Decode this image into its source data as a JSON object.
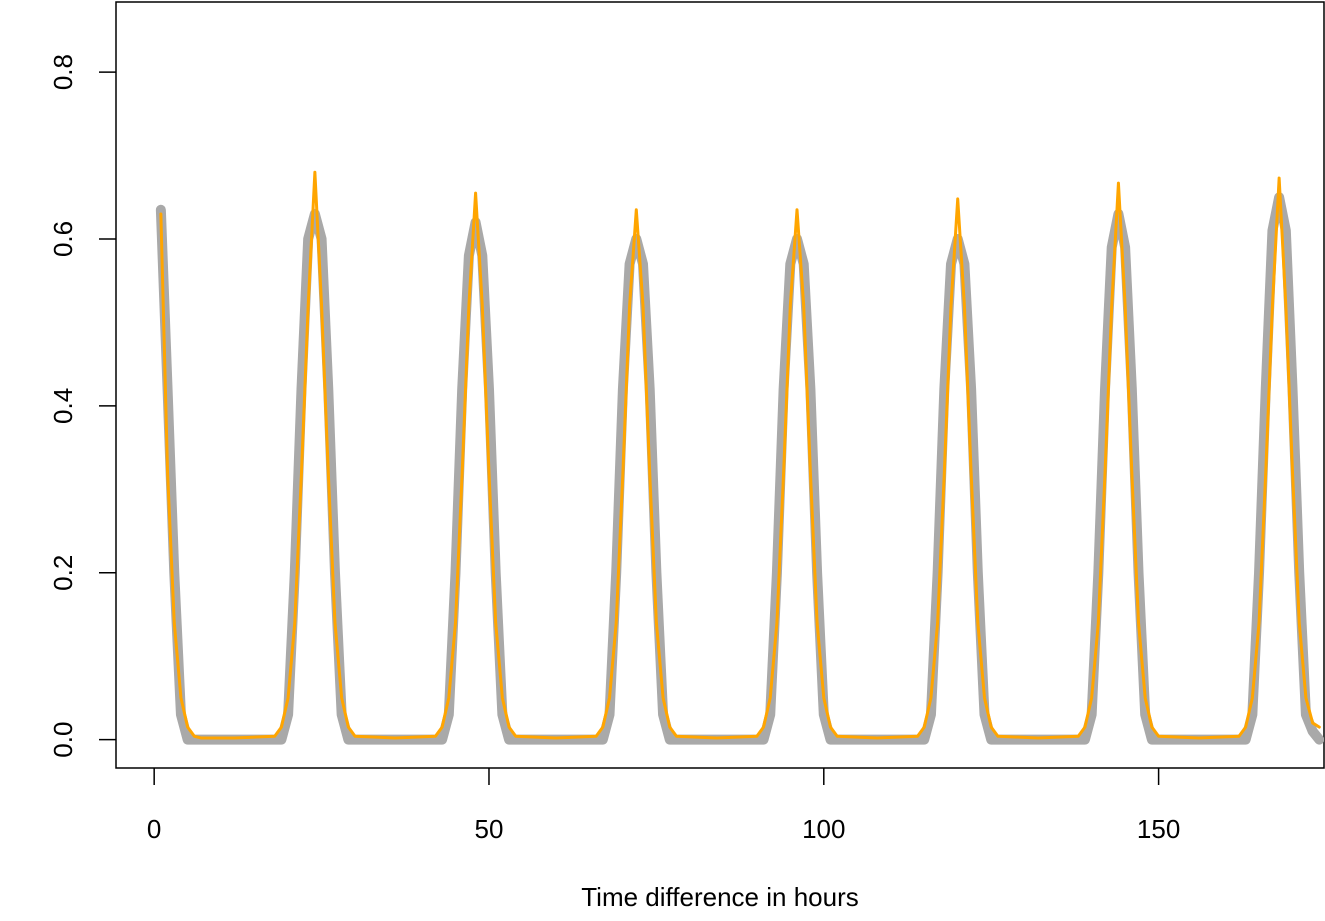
{
  "chart_data": {
    "type": "line",
    "x_label": "Time difference in hours",
    "x": [
      1,
      2,
      3,
      4,
      5,
      6,
      7,
      12,
      18,
      19,
      20,
      21,
      22,
      23,
      24,
      25,
      26,
      27,
      28,
      29,
      30,
      36,
      42,
      43,
      44,
      45,
      46,
      47,
      48,
      49,
      50,
      51,
      52,
      53,
      54,
      60,
      66,
      67,
      68,
      69,
      70,
      71,
      72,
      73,
      74,
      75,
      76,
      77,
      78,
      84,
      90,
      91,
      92,
      93,
      94,
      95,
      96,
      97,
      98,
      99,
      100,
      101,
      102,
      108,
      114,
      115,
      116,
      117,
      118,
      119,
      120,
      121,
      122,
      123,
      124,
      125,
      126,
      132,
      138,
      139,
      140,
      141,
      142,
      143,
      144,
      145,
      146,
      147,
      148,
      149,
      150,
      156,
      162,
      163,
      164,
      165,
      166,
      167,
      168,
      169,
      170,
      171,
      172,
      173,
      174
    ],
    "series": [
      {
        "color": "#a9a9a9",
        "width": 10,
        "values": [
          0.635,
          0.42,
          0.2,
          0.03,
          0,
          0,
          0,
          0,
          0,
          0,
          0.03,
          0.2,
          0.42,
          0.6,
          0.63,
          0.6,
          0.42,
          0.2,
          0.03,
          0,
          0,
          0,
          0,
          0,
          0.03,
          0.2,
          0.42,
          0.58,
          0.62,
          0.58,
          0.42,
          0.2,
          0.03,
          0,
          0,
          0,
          0,
          0,
          0.03,
          0.2,
          0.42,
          0.57,
          0.6,
          0.57,
          0.42,
          0.2,
          0.03,
          0,
          0,
          0,
          0,
          0,
          0.03,
          0.2,
          0.42,
          0.57,
          0.6,
          0.57,
          0.42,
          0.2,
          0.03,
          0,
          0,
          0,
          0,
          0,
          0.03,
          0.2,
          0.42,
          0.57,
          0.6,
          0.57,
          0.42,
          0.2,
          0.03,
          0,
          0,
          0,
          0,
          0,
          0.03,
          0.2,
          0.42,
          0.59,
          0.63,
          0.59,
          0.42,
          0.2,
          0.03,
          0,
          0,
          0,
          0,
          0,
          0.03,
          0.2,
          0.42,
          0.61,
          0.65,
          0.61,
          0.42,
          0.2,
          0.03,
          0.01,
          0
        ]
      },
      {
        "color": "#ffa500",
        "width": 3,
        "values": [
          0.63,
          0.32,
          0.14,
          0.05,
          0.015,
          0.004,
          0.002,
          0.002,
          0.004,
          0.015,
          0.05,
          0.14,
          0.32,
          0.52,
          0.68,
          0.52,
          0.32,
          0.14,
          0.05,
          0.015,
          0.004,
          0.002,
          0.004,
          0.015,
          0.05,
          0.14,
          0.32,
          0.52,
          0.655,
          0.52,
          0.32,
          0.14,
          0.05,
          0.015,
          0.004,
          0.002,
          0.004,
          0.015,
          0.05,
          0.14,
          0.32,
          0.52,
          0.635,
          0.52,
          0.32,
          0.14,
          0.05,
          0.015,
          0.004,
          0.002,
          0.004,
          0.015,
          0.05,
          0.14,
          0.32,
          0.52,
          0.635,
          0.52,
          0.32,
          0.14,
          0.05,
          0.015,
          0.004,
          0.002,
          0.004,
          0.015,
          0.05,
          0.14,
          0.32,
          0.52,
          0.648,
          0.52,
          0.32,
          0.14,
          0.05,
          0.015,
          0.004,
          0.002,
          0.004,
          0.015,
          0.05,
          0.14,
          0.32,
          0.52,
          0.667,
          0.52,
          0.32,
          0.14,
          0.05,
          0.015,
          0.004,
          0.002,
          0.004,
          0.015,
          0.05,
          0.14,
          0.32,
          0.52,
          0.673,
          0.52,
          0.32,
          0.14,
          0.05,
          0.02,
          0.015
        ]
      }
    ],
    "xlim": [
      -5.7,
      174.7
    ],
    "ylim": [
      -0.034,
      0.884
    ],
    "xticks": [
      0,
      50,
      100,
      150
    ],
    "yticks": [
      {
        "value": 0,
        "label": "0.0"
      },
      0.2,
      0.4,
      0.6,
      0.8
    ]
  }
}
